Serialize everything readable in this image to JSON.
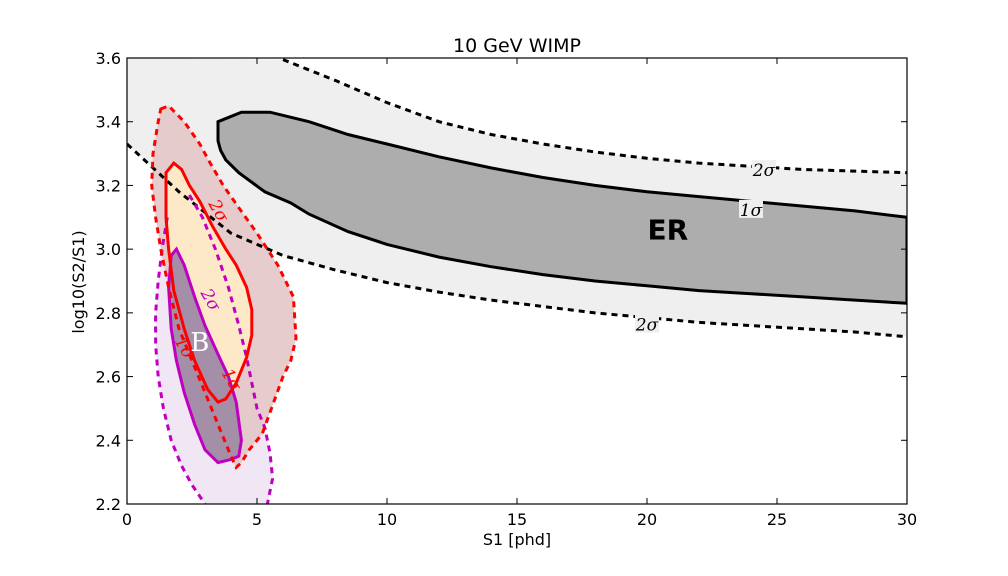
{
  "chart_data": {
    "type": "contour",
    "title": "10 GeV WIMP",
    "xlabel": "S1 [phd]",
    "ylabel": "log10(S2/S1)",
    "xlim": [
      0,
      30
    ],
    "ylim": [
      2.2,
      3.6
    ],
    "xticks": [
      0,
      5,
      10,
      15,
      20,
      25,
      30
    ],
    "yticks": [
      2.2,
      2.4,
      2.6,
      2.8,
      3.0,
      3.2,
      3.4,
      3.6
    ],
    "grid": false,
    "colors": {
      "er_outer_fill": "#efefef",
      "er_inner_fill": "#adadad",
      "er_line": "#000000",
      "wimp_line": "#ff0000",
      "wimp_outer_fill": "#e3c6c6",
      "wimp_inner_fill": "#fde9c8",
      "b8_line": "#c000c0",
      "b8_inner_fill": "#a48ea8",
      "b8_outer_fill": "#f1e6f4"
    },
    "region_labels": [
      {
        "text": "ER",
        "x": 20.8,
        "y": 3.03
      },
      {
        "text": "B",
        "x": 2.8,
        "y": 2.68
      }
    ],
    "series": [
      {
        "id": "er_2sigma_upper",
        "group": "ER",
        "level": "2sigma",
        "style": "dashed",
        "x": [
          6.0,
          8,
          10,
          12,
          14,
          16,
          18,
          20,
          22,
          24,
          26,
          28,
          30
        ],
        "y": [
          3.595,
          3.53,
          3.46,
          3.4,
          3.36,
          3.33,
          3.305,
          3.285,
          3.27,
          3.26,
          3.25,
          3.245,
          3.24
        ]
      },
      {
        "id": "er_2sigma_lower",
        "group": "ER",
        "level": "2sigma",
        "style": "dashed",
        "x": [
          0,
          2,
          4,
          6,
          8,
          10,
          12,
          14,
          16,
          18,
          20,
          22,
          24,
          26,
          28,
          30
        ],
        "y": [
          3.33,
          3.18,
          3.05,
          2.98,
          2.935,
          2.895,
          2.865,
          2.84,
          2.82,
          2.8,
          2.785,
          2.77,
          2.76,
          2.75,
          2.74,
          2.725
        ]
      },
      {
        "id": "er_1sigma",
        "group": "ER",
        "level": "1sigma",
        "style": "solid",
        "x": [
          3.5,
          4.4,
          5.5,
          7,
          8.5,
          10,
          12,
          14,
          16,
          18,
          20,
          22,
          24,
          26,
          28,
          30,
          30,
          28,
          26,
          24,
          22,
          20,
          18,
          16,
          14,
          12,
          10,
          8.5,
          7,
          6.3,
          5.3,
          4.3,
          3.8,
          3.6,
          3.5
        ],
        "y": [
          3.4,
          3.43,
          3.43,
          3.4,
          3.36,
          3.33,
          3.29,
          3.255,
          3.225,
          3.2,
          3.18,
          3.165,
          3.15,
          3.135,
          3.12,
          3.1,
          2.83,
          2.84,
          2.85,
          2.86,
          2.87,
          2.885,
          2.9,
          2.92,
          2.945,
          2.975,
          3.015,
          3.055,
          3.11,
          3.145,
          3.18,
          3.24,
          3.28,
          3.31,
          3.34
        ]
      },
      {
        "id": "wimp_2sigma",
        "group": "WIMP",
        "level": "2sigma",
        "style": "dashed",
        "x": [
          1.3,
          1.6,
          2.2,
          2.8,
          3.2,
          3.7,
          4.3,
          5.0,
          5.8,
          6.4,
          6.5,
          6.3,
          6.0,
          5.6,
          5.2,
          4.7,
          4.4,
          4.2,
          4.0,
          3.5,
          3.0,
          2.5,
          2.0,
          1.6,
          1.3,
          1.1,
          0.95,
          1.0,
          1.2,
          1.3
        ],
        "y": [
          3.44,
          3.45,
          3.4,
          3.33,
          3.27,
          3.2,
          3.13,
          3.05,
          2.95,
          2.85,
          2.72,
          2.65,
          2.6,
          2.51,
          2.42,
          2.37,
          2.33,
          2.315,
          2.35,
          2.45,
          2.55,
          2.65,
          2.75,
          2.88,
          3.0,
          3.1,
          3.2,
          3.3,
          3.4,
          3.44
        ]
      },
      {
        "id": "wimp_1sigma",
        "group": "WIMP",
        "level": "1sigma",
        "style": "solid",
        "x": [
          1.5,
          1.8,
          2.1,
          2.4,
          2.8,
          3.3,
          3.8,
          4.2,
          4.6,
          4.8,
          4.8,
          4.6,
          4.2,
          3.8,
          3.5,
          3.1,
          2.6,
          2.2,
          1.8,
          1.6,
          1.5,
          1.5
        ],
        "y": [
          3.24,
          3.27,
          3.25,
          3.2,
          3.15,
          3.07,
          3.0,
          2.95,
          2.88,
          2.81,
          2.73,
          2.66,
          2.58,
          2.53,
          2.52,
          2.56,
          2.65,
          2.75,
          2.87,
          3.0,
          3.1,
          3.24
        ]
      },
      {
        "id": "b8_1sigma",
        "group": "8B",
        "level": "1sigma",
        "style": "solid",
        "x": [
          1.7,
          1.9,
          2.2,
          2.6,
          3.0,
          3.5,
          3.9,
          4.2,
          4.4,
          4.3,
          4.0,
          3.5,
          3.0,
          2.6,
          2.2,
          1.9,
          1.7,
          1.6,
          1.7
        ],
        "y": [
          2.98,
          3.0,
          2.95,
          2.85,
          2.76,
          2.67,
          2.6,
          2.52,
          2.4,
          2.35,
          2.34,
          2.33,
          2.37,
          2.45,
          2.55,
          2.65,
          2.75,
          2.88,
          2.98
        ]
      },
      {
        "id": "b8_2sigma_left",
        "group": "8B",
        "level": "2sigma",
        "style": "dashed",
        "x": [
          1.55,
          1.35,
          1.2,
          1.1,
          1.1,
          1.2,
          1.4,
          1.7,
          2.1,
          2.5,
          3.0
        ],
        "y": [
          3.1,
          3.0,
          2.9,
          2.8,
          2.7,
          2.6,
          2.5,
          2.4,
          2.32,
          2.26,
          2.2
        ]
      },
      {
        "id": "b8_2sigma_right",
        "group": "8B",
        "level": "2sigma",
        "style": "dashed",
        "x": [
          2.4,
          2.9,
          3.4,
          3.9,
          4.3,
          4.6,
          4.8,
          5.0,
          5.3,
          5.5,
          5.6,
          5.4
        ],
        "y": [
          3.17,
          3.1,
          3.0,
          2.88,
          2.76,
          2.66,
          2.58,
          2.5,
          2.44,
          2.36,
          2.28,
          2.2
        ]
      },
      {
        "id": "b8_2sigma_fill",
        "group": "8B",
        "level": "2sigma",
        "style": "fill",
        "x": [
          1.55,
          2.4,
          2.9,
          3.4,
          3.9,
          4.3,
          4.6,
          4.8,
          5.0,
          5.3,
          5.5,
          5.6,
          5.4,
          3.0,
          2.5,
          2.1,
          1.7,
          1.4,
          1.2,
          1.1,
          1.1,
          1.2,
          1.35
        ],
        "y": [
          3.1,
          3.17,
          3.1,
          3.0,
          2.88,
          2.76,
          2.66,
          2.58,
          2.5,
          2.44,
          2.36,
          2.28,
          2.2,
          2.2,
          2.26,
          2.32,
          2.4,
          2.5,
          2.6,
          2.7,
          2.8,
          2.9,
          3.0
        ]
      }
    ],
    "contour_labels": [
      {
        "text": "2σ",
        "x": 24.5,
        "y": 3.245,
        "color": "#000000",
        "rotate": 0
      },
      {
        "text": "1σ",
        "x": 24.0,
        "y": 3.12,
        "color": "#000000",
        "rotate": 0
      },
      {
        "text": "2σ",
        "x": 20.0,
        "y": 2.76,
        "color": "#000000",
        "rotate": 0
      },
      {
        "text": "2σ",
        "x": 3.5,
        "y": 3.12,
        "color": "#ff0000",
        "rotate": 60
      },
      {
        "text": "2σ",
        "x": 3.2,
        "y": 2.84,
        "color": "#c000c0",
        "rotate": 60
      },
      {
        "text": "1σ",
        "x": 2.2,
        "y": 2.69,
        "color": "#ff0000",
        "rotate": 60
      },
      {
        "text": "1σ",
        "x": 4.0,
        "y": 2.59,
        "color": "#ff0000",
        "rotate": 60
      }
    ]
  }
}
